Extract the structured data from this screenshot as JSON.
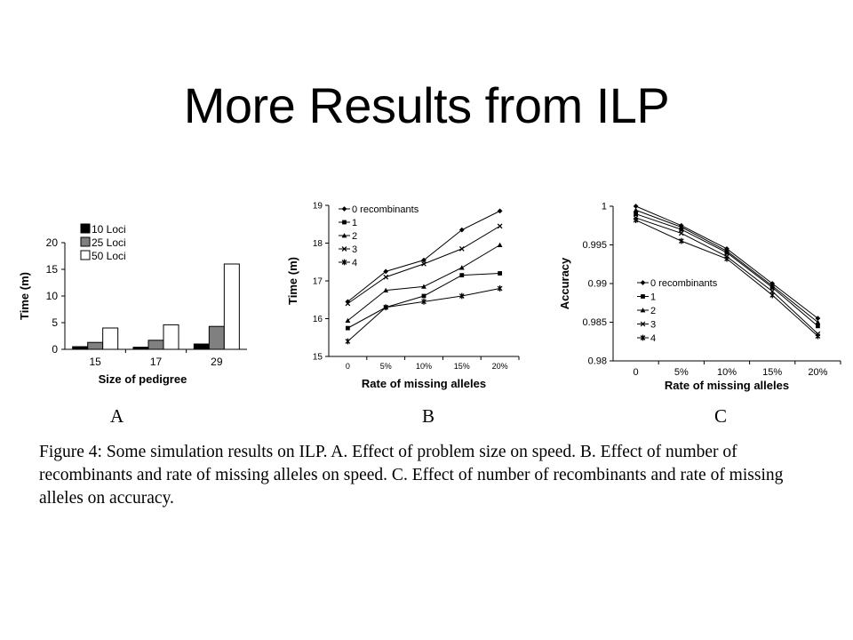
{
  "slide": {
    "title": "More Results from ILP",
    "caption": "Figure 4: Some simulation results on ILP. A. Effect of problem size on speed. B. Effect of number of recombinants and rate of missing alleles on speed. C. Effect of number of recombinants and rate of missing alleles on accuracy.",
    "panel_labels": [
      "A",
      "B",
      "C"
    ]
  },
  "chart_data": [
    {
      "panel": "A",
      "type": "bar",
      "xlabel": "Size of pedigree",
      "ylabel": "Time (m)",
      "categories": [
        "15",
        "17",
        "29"
      ],
      "ylim": [
        0,
        20
      ],
      "yticks": [
        "0",
        "5",
        "10",
        "15",
        "20"
      ],
      "legend_position": "top-left",
      "series": [
        {
          "name": "10 Loci",
          "color": "#000000",
          "values": [
            0.5,
            0.4,
            1.0
          ]
        },
        {
          "name": "25 Loci",
          "color": "#808080",
          "values": [
            1.3,
            1.7,
            4.3
          ]
        },
        {
          "name": "50 Loci",
          "color": "#ffffff",
          "values": [
            4.0,
            4.6,
            16.0
          ]
        }
      ]
    },
    {
      "panel": "B",
      "type": "line",
      "xlabel": "Rate of missing alleles",
      "ylabel": "Time (m)",
      "categories": [
        "0",
        "5%",
        "10%",
        "15%",
        "20%"
      ],
      "ylim": [
        15,
        19
      ],
      "yticks": [
        "15",
        "16",
        "17",
        "18",
        "19"
      ],
      "legend_position": "top-left",
      "series": [
        {
          "name": "0 recombinants",
          "values": [
            16.45,
            17.25,
            17.55,
            18.35,
            18.85
          ]
        },
        {
          "name": "1",
          "values": [
            15.75,
            16.3,
            16.6,
            17.15,
            17.2
          ]
        },
        {
          "name": "2",
          "values": [
            15.95,
            16.75,
            16.85,
            17.35,
            17.95
          ]
        },
        {
          "name": "3",
          "values": [
            16.4,
            17.1,
            17.45,
            17.85,
            18.45
          ]
        },
        {
          "name": "4",
          "values": [
            15.4,
            16.3,
            16.45,
            16.6,
            16.8
          ]
        }
      ]
    },
    {
      "panel": "C",
      "type": "line",
      "xlabel": "Rate of missing alleles",
      "ylabel": "Accuracy",
      "categories": [
        "0",
        "5%",
        "10%",
        "15%",
        "20%"
      ],
      "ylim": [
        0.98,
        1.0
      ],
      "yticks": [
        "0.98",
        "0.985",
        "0.99",
        "0.995",
        "1"
      ],
      "legend_position": "left",
      "series": [
        {
          "name": "0 recombinants",
          "values": [
            1.0,
            0.9975,
            0.9945,
            0.99,
            0.9855
          ]
        },
        {
          "name": "1",
          "values": [
            0.999,
            0.997,
            0.994,
            0.9895,
            0.9845
          ]
        },
        {
          "name": "2",
          "values": [
            0.9995,
            0.9973,
            0.9942,
            0.9897,
            0.985
          ]
        },
        {
          "name": "3",
          "values": [
            0.9985,
            0.9965,
            0.9935,
            0.989,
            0.9835
          ]
        },
        {
          "name": "4",
          "values": [
            0.9982,
            0.9955,
            0.9932,
            0.9885,
            0.9832
          ]
        }
      ]
    }
  ]
}
